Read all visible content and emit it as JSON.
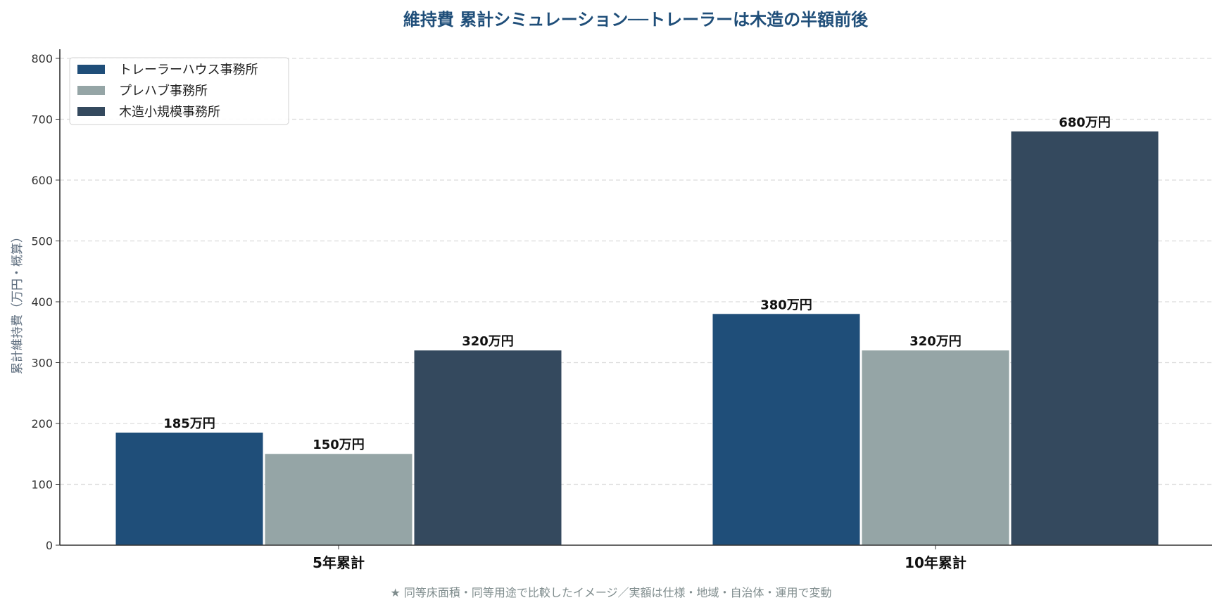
{
  "chart_data": {
    "type": "bar",
    "title": "維持費 累計シミュレーション──トレーラーは木造の半額前後",
    "xlabel": "",
    "ylabel": "累計維持費（万円・概算）",
    "categories": [
      "5年累計",
      "10年累計"
    ],
    "series": [
      {
        "name": "トレーラーハウス事務所",
        "values": [
          185,
          380
        ],
        "labels": [
          "185万円",
          "380万円"
        ],
        "color": "#1f4e79"
      },
      {
        "name": "プレハブ事務所",
        "values": [
          150,
          320
        ],
        "labels": [
          "150万円",
          "320万円"
        ],
        "color": "#95a5a6"
      },
      {
        "name": "木造小規模事務所",
        "values": [
          320,
          680
        ],
        "labels": [
          "320万円",
          "680万円"
        ],
        "color": "#34495e"
      }
    ],
    "ylim": [
      0,
      815
    ],
    "yticks": [
      "0",
      "100",
      "200",
      "300",
      "400",
      "500",
      "600",
      "700",
      "800"
    ],
    "grid": "horizontal dashed",
    "legend": "top-left",
    "title_color": "#1f4e79",
    "footnote": "★ 同等床面積・同等用途で比較したイメージ／実額は仕様・地域・自治体・運用で変動"
  }
}
